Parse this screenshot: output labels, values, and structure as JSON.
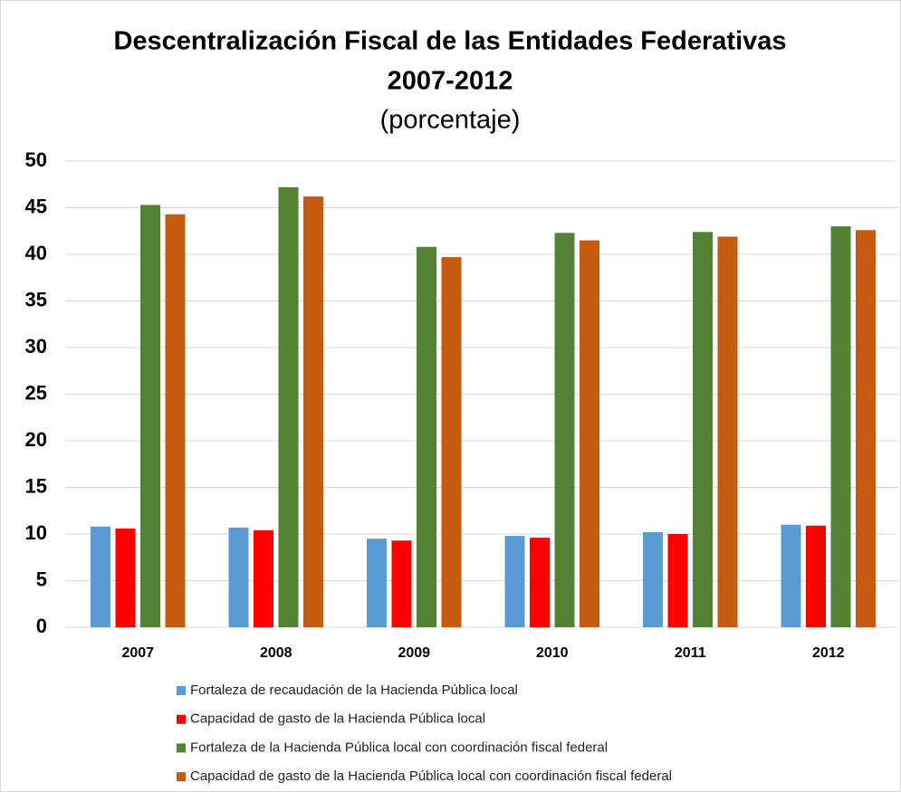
{
  "chart_data": {
    "type": "bar",
    "title": [
      "Descentralización Fiscal de las Entidades Federativas",
      "2007-2012"
    ],
    "subtitle": "(porcentaje)",
    "categories": [
      "2007",
      "2008",
      "2009",
      "2010",
      "2011",
      "2012"
    ],
    "series": [
      {
        "name": "Fortaleza de recaudación de la Hacienda Pública local",
        "color": "#5b9bd5",
        "values": [
          10.8,
          10.7,
          9.5,
          9.8,
          10.2,
          11.0
        ]
      },
      {
        "name": "Capacidad de gasto de la Hacienda Pública local",
        "color": "#ff0000",
        "values": [
          10.6,
          10.4,
          9.3,
          9.6,
          10.0,
          10.9
        ]
      },
      {
        "name": "Fortaleza de la Hacienda Pública local con coordinación fiscal federal",
        "color": "#548235",
        "values": [
          45.3,
          47.2,
          40.8,
          42.3,
          42.4,
          43.0
        ]
      },
      {
        "name": "Capacidad de gasto de la Hacienda Pública local con coordinación fiscal federal",
        "color": "#c55a11",
        "values": [
          44.3,
          46.2,
          39.7,
          41.5,
          41.9,
          42.6
        ]
      }
    ],
    "ylim": [
      0,
      50
    ],
    "yticks": [
      0,
      5,
      10,
      15,
      20,
      25,
      30,
      35,
      40,
      45,
      50
    ],
    "grid": true,
    "legend": "bottom"
  }
}
